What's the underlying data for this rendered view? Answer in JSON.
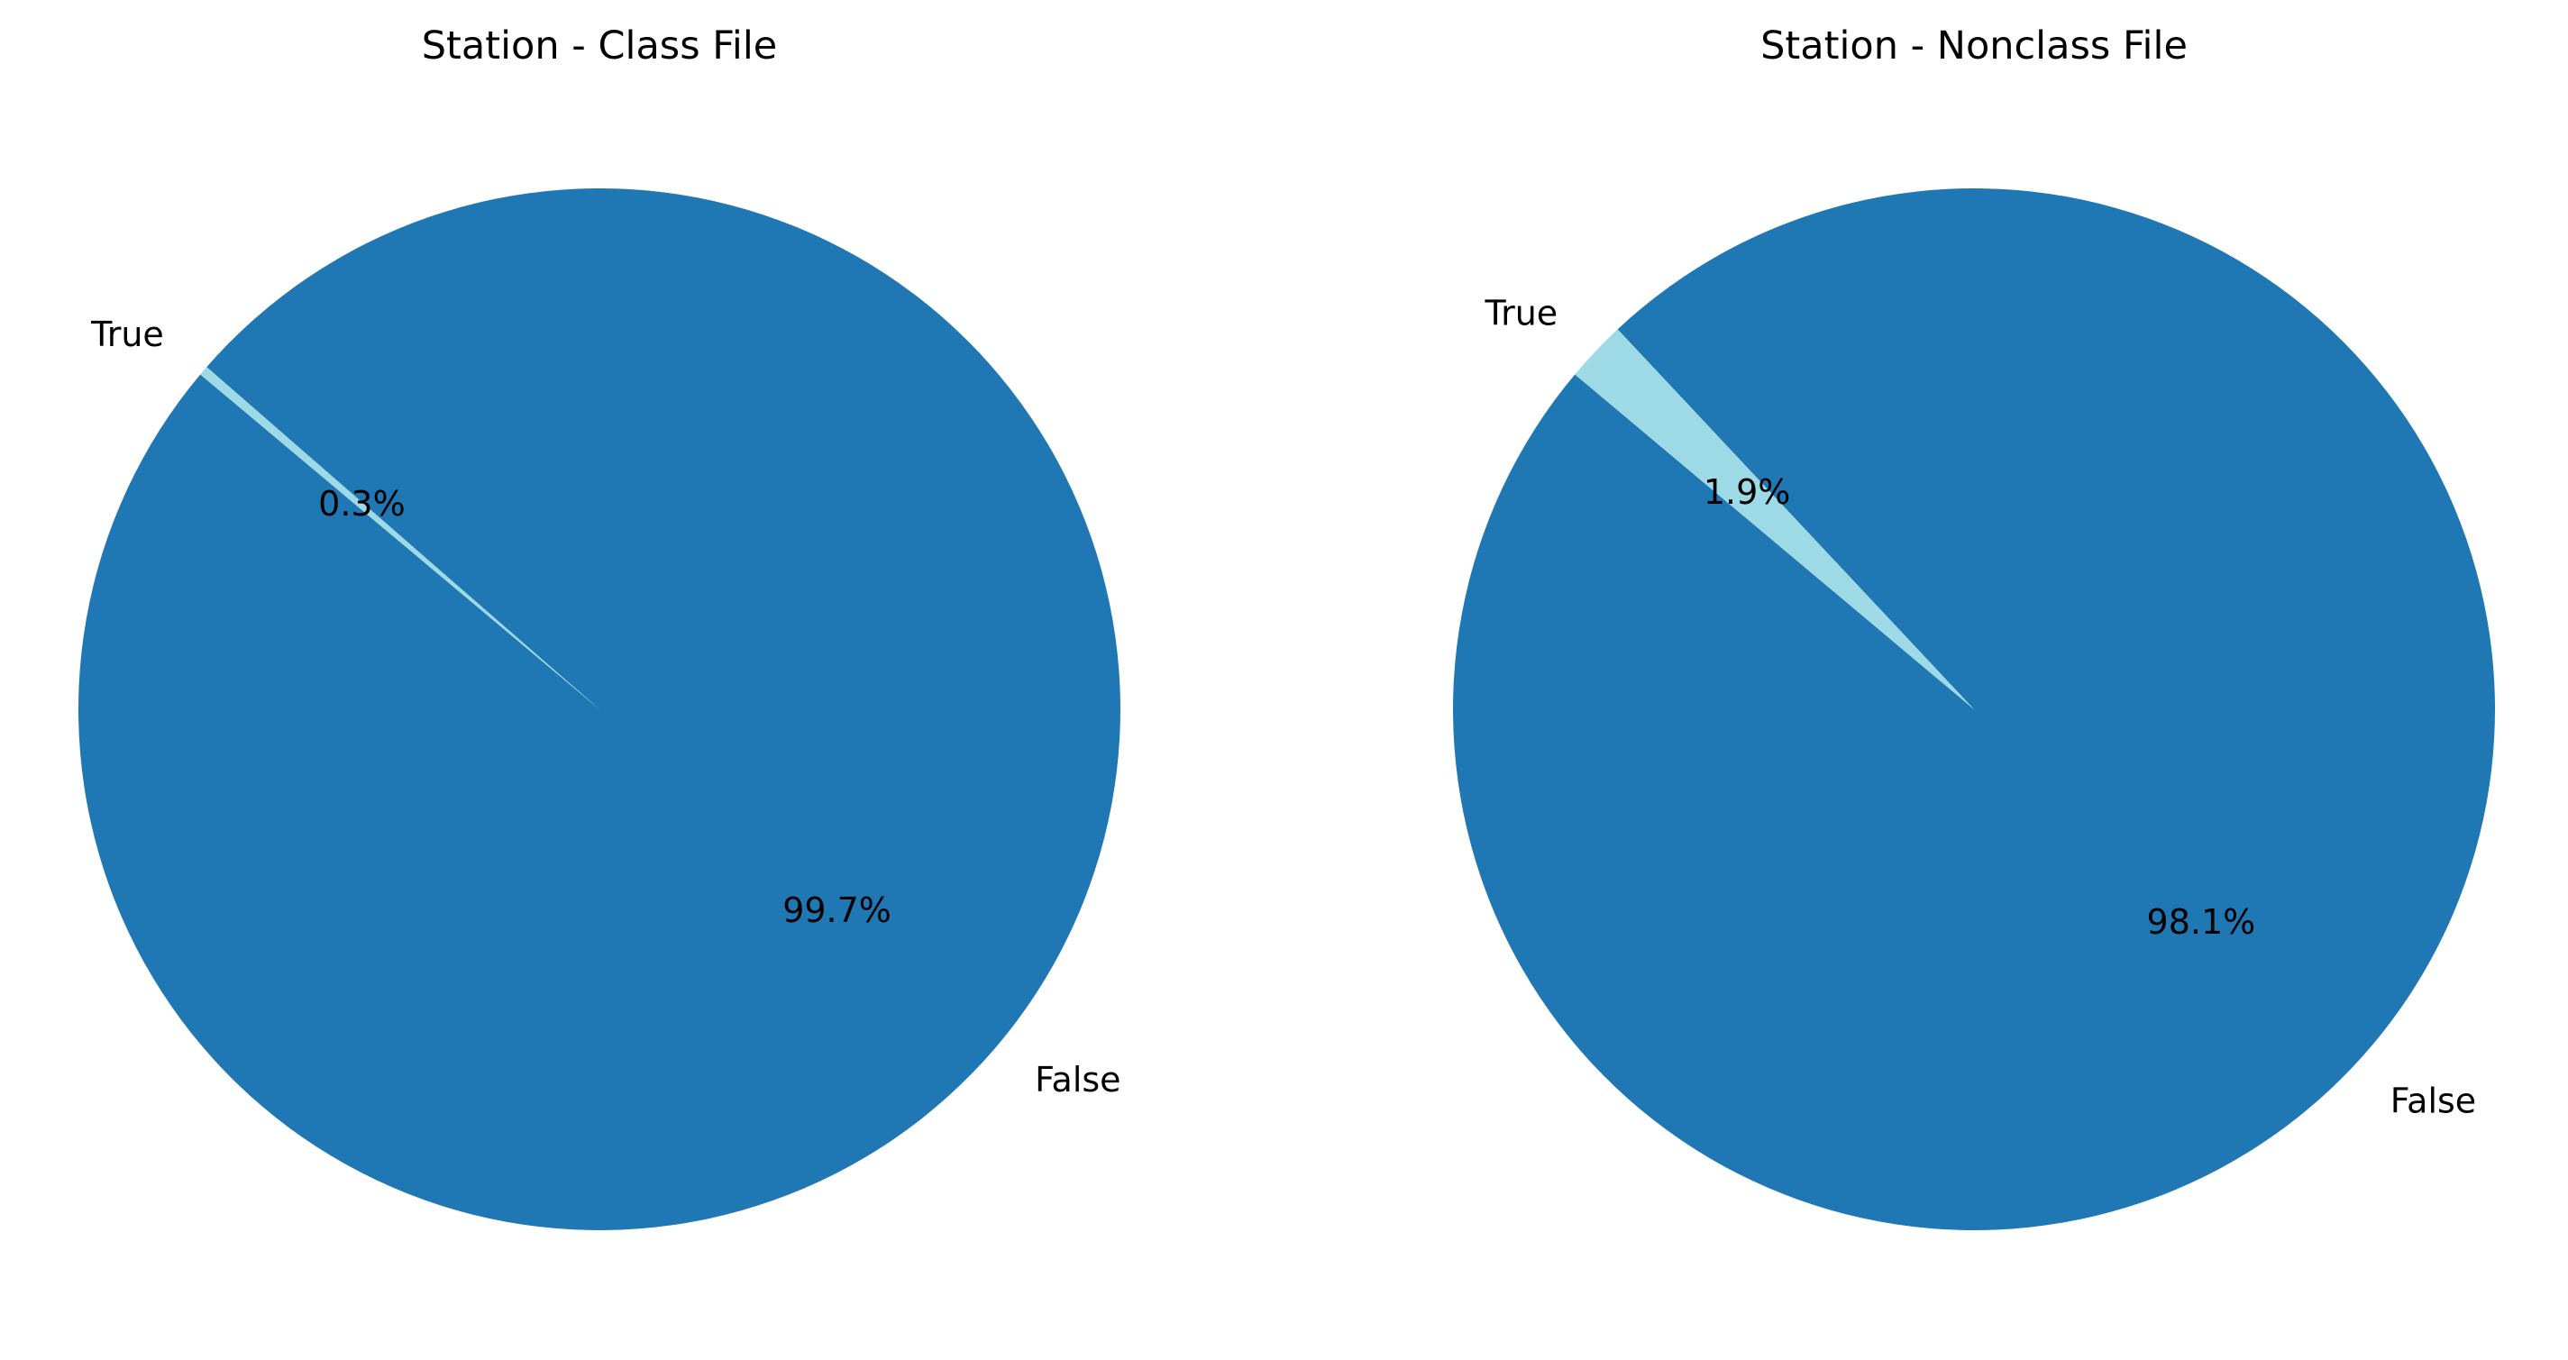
{
  "chart_data": [
    {
      "type": "pie",
      "title": "Station - Class File",
      "labels": [
        "False",
        "True"
      ],
      "values": [
        99.7,
        0.3
      ],
      "percent_labels": [
        "99.7%",
        "0.3%"
      ],
      "colors": [
        "#1f77b4",
        "#9edae5"
      ]
    },
    {
      "type": "pie",
      "title": "Station - Nonclass File",
      "labels": [
        "False",
        "True"
      ],
      "values": [
        98.1,
        1.9
      ],
      "percent_labels": [
        "98.1%",
        "1.9%"
      ],
      "colors": [
        "#1f77b4",
        "#9edae5"
      ]
    }
  ]
}
